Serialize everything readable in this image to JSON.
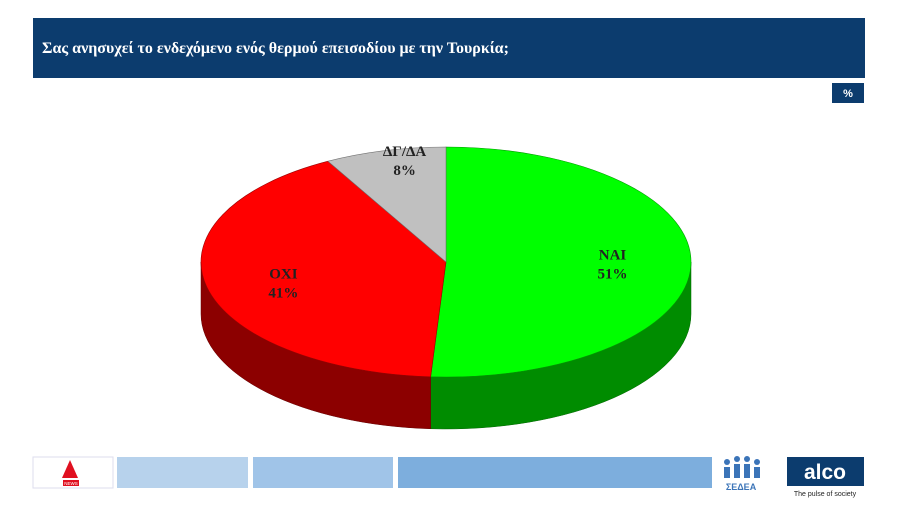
{
  "chart_data": {
    "type": "pie",
    "title": "Σας ανησυχεί το ενδεχόμενο ενός θερμού επεισοδίου με την Τουρκία;",
    "categories": [
      "ΝΑΙ",
      "ΟΧΙ",
      "ΔΓ/ΔΑ"
    ],
    "values": [
      51,
      41,
      8
    ],
    "value_labels": [
      "51%",
      "41%",
      "8%"
    ],
    "colors": [
      "#00ff00",
      "#ff0000",
      "#c0c0c0"
    ],
    "unit": "%"
  },
  "footer": {
    "alpha_logo": "NEWS",
    "sedea_logo": "ΣΕΔΕΑ",
    "alco_logo": "alco",
    "alco_tagline": "The pulse of society"
  }
}
